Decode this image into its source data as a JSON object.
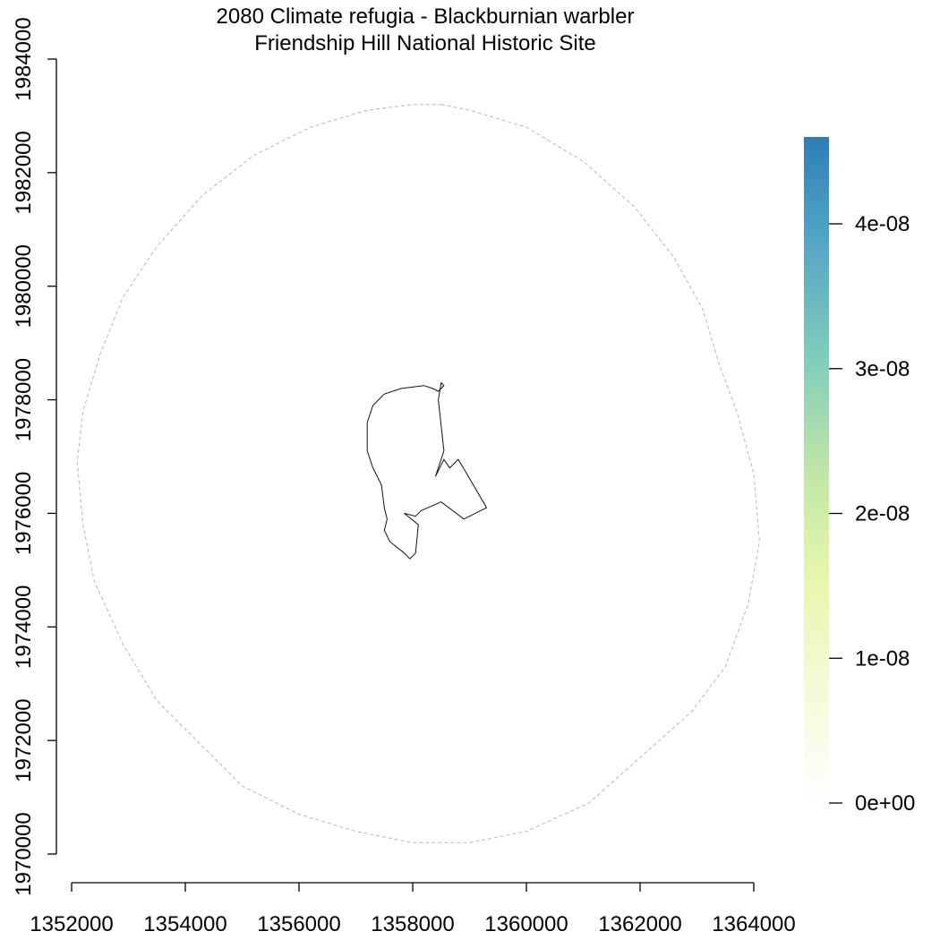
{
  "chart_data": {
    "type": "map",
    "title": "2080 Climate refugia - Blackburnian warbler",
    "subtitle": "Friendship Hill National Historic Site",
    "xlim": [
      1352000,
      1364000
    ],
    "ylim": [
      1970000,
      1984000
    ],
    "x_ticks": [
      "1352000",
      "1354000",
      "1356000",
      "1358000",
      "1360000",
      "1362000",
      "1364000"
    ],
    "y_ticks": [
      "1970000",
      "1972000",
      "1974000",
      "1976000",
      "1978000",
      "1980000",
      "1982000",
      "1984000"
    ],
    "legend": {
      "placement": "right",
      "min": 0,
      "max": 4.6e-08,
      "ticks": [
        0,
        1e-08,
        2e-08,
        3e-08,
        4e-08
      ],
      "tick_labels": [
        "0e+00",
        "1e-08",
        "2e-08",
        "3e-08",
        "4e-08"
      ],
      "colors": [
        "#ffffff",
        "#f4fbd8",
        "#e8f7ad",
        "#bfe6a6",
        "#7fcdbb",
        "#56a8c4",
        "#2c7fb8"
      ]
    },
    "buffer_ring": {
      "style": "dashed",
      "color": "#b8b8b8",
      "points": [
        [
          1358500,
          1983200
        ],
        [
          1359000,
          1983100
        ],
        [
          1360000,
          1982800
        ],
        [
          1361000,
          1982200
        ],
        [
          1361900,
          1981400
        ],
        [
          1362600,
          1980500
        ],
        [
          1363100,
          1979600
        ],
        [
          1363400,
          1978600
        ],
        [
          1363700,
          1977800
        ],
        [
          1364000,
          1976700
        ],
        [
          1364100,
          1975500
        ],
        [
          1363900,
          1974400
        ],
        [
          1363500,
          1973300
        ],
        [
          1362900,
          1972500
        ],
        [
          1362000,
          1971700
        ],
        [
          1361100,
          1970900
        ],
        [
          1360000,
          1970400
        ],
        [
          1359000,
          1970200
        ],
        [
          1358000,
          1970200
        ],
        [
          1357000,
          1970400
        ],
        [
          1356000,
          1970700
        ],
        [
          1355000,
          1971200
        ],
        [
          1354300,
          1971900
        ],
        [
          1353500,
          1972700
        ],
        [
          1352900,
          1973700
        ],
        [
          1352400,
          1974800
        ],
        [
          1352200,
          1975800
        ],
        [
          1352100,
          1976900
        ],
        [
          1352200,
          1977800
        ],
        [
          1352500,
          1978800
        ],
        [
          1352900,
          1979800
        ],
        [
          1353500,
          1980700
        ],
        [
          1354300,
          1981600
        ],
        [
          1355200,
          1982300
        ],
        [
          1356200,
          1982800
        ],
        [
          1357200,
          1983100
        ],
        [
          1358000,
          1983200
        ]
      ]
    },
    "park_boundary": {
      "color": "#111111",
      "points": [
        [
          1358500,
          1978300
        ],
        [
          1358550,
          1978250
        ],
        [
          1358450,
          1978150
        ],
        [
          1358350,
          1978200
        ],
        [
          1358200,
          1978250
        ],
        [
          1357800,
          1978200
        ],
        [
          1357500,
          1978100
        ],
        [
          1357300,
          1977900
        ],
        [
          1357200,
          1977600
        ],
        [
          1357200,
          1977100
        ],
        [
          1357300,
          1976800
        ],
        [
          1357450,
          1976500
        ],
        [
          1357500,
          1976100
        ],
        [
          1357550,
          1975900
        ],
        [
          1357500,
          1975700
        ],
        [
          1357600,
          1975500
        ],
        [
          1357850,
          1975300
        ],
        [
          1357950,
          1975200
        ],
        [
          1358050,
          1975300
        ],
        [
          1358100,
          1975800
        ],
        [
          1357850,
          1976000
        ],
        [
          1358050,
          1975950
        ],
        [
          1358150,
          1976050
        ],
        [
          1358500,
          1976200
        ],
        [
          1358900,
          1975900
        ],
        [
          1359300,
          1976100
        ],
        [
          1358950,
          1976700
        ],
        [
          1358800,
          1976950
        ],
        [
          1358650,
          1976800
        ],
        [
          1358550,
          1976950
        ],
        [
          1358400,
          1976650
        ],
        [
          1358550,
          1977100
        ],
        [
          1358450,
          1978000
        ],
        [
          1358500,
          1978300
        ]
      ]
    }
  }
}
